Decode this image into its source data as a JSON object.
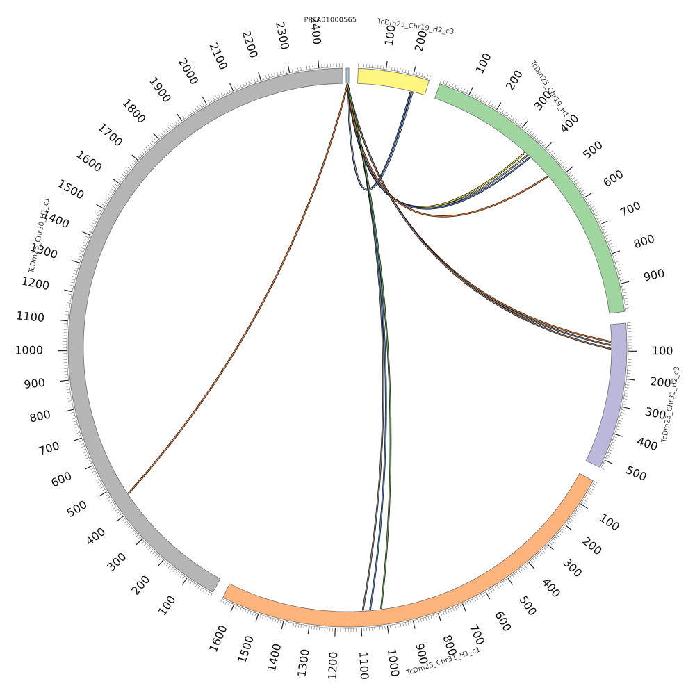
{
  "diagram": {
    "type": "circos",
    "chromosomes": [
      {
        "id": "prfa",
        "label": "PRFA01000565",
        "start": 0,
        "end": 10,
        "color": "#a9c6de",
        "tick_labels": []
      },
      {
        "id": "c19h2",
        "label": "TcDm25_Chr19_H2_c3",
        "start": 0,
        "end": 260,
        "color": "#fff57f",
        "tick_labels": [
          100,
          200
        ]
      },
      {
        "id": "c19h1",
        "label": "TcDm25_Chr19_H1",
        "start": 0,
        "end": 990,
        "color": "#9fd6a0",
        "tick_labels": [
          100,
          200,
          300,
          400,
          500,
          600,
          700,
          800,
          900
        ]
      },
      {
        "id": "c31h2",
        "label": "TcDm25_Chr31_H2_c3",
        "start": 0,
        "end": 530,
        "color": "#bcb8db",
        "tick_labels": [
          100,
          200,
          300,
          400,
          500
        ]
      },
      {
        "id": "c31h1",
        "label": "TcDm25_Chr31_H1_c1",
        "start": 0,
        "end": 1650,
        "color": "#fdb37c",
        "tick_labels": [
          100,
          200,
          300,
          400,
          500,
          600,
          700,
          800,
          900,
          1000,
          1100,
          1200,
          1300,
          1400,
          1500,
          1600
        ]
      },
      {
        "id": "c30h1",
        "label": "TcDm25_Chr30_H1_c1",
        "start": 0,
        "end": 2480,
        "color": "#b5b5b5",
        "tick_labels": [
          100,
          200,
          300,
          400,
          500,
          600,
          700,
          800,
          900,
          1000,
          1100,
          1200,
          1300,
          1400,
          1500,
          1600,
          1700,
          1800,
          1900,
          2000,
          2100,
          2200,
          2300,
          2400
        ]
      }
    ],
    "links": [
      {
        "from": "prfa",
        "from_pos": 5,
        "to": "c19h2",
        "to_pos": 205,
        "color": "#5b7fc4"
      },
      {
        "from": "prfa",
        "from_pos": 5,
        "to": "c19h2",
        "to_pos": 212,
        "color": "#9fb8de"
      },
      {
        "from": "prfa",
        "from_pos": 5,
        "to": "c19h1",
        "to_pos": 360,
        "color": "#f2e24a"
      },
      {
        "from": "prfa",
        "from_pos": 5,
        "to": "c19h1",
        "to_pos": 372,
        "color": "#b5b5b5"
      },
      {
        "from": "prfa",
        "from_pos": 5,
        "to": "c19h1",
        "to_pos": 383,
        "color": "#5b7fc4"
      },
      {
        "from": "prfa",
        "from_pos": 5,
        "to": "c19h1",
        "to_pos": 472,
        "color": "#e07a3a"
      },
      {
        "from": "prfa",
        "from_pos": 5,
        "to": "c31h2",
        "to_pos": 65,
        "color": "#e07a3a"
      },
      {
        "from": "prfa",
        "from_pos": 5,
        "to": "c31h2",
        "to_pos": 78,
        "color": "#8a8a8a"
      },
      {
        "from": "prfa",
        "from_pos": 5,
        "to": "c31h2",
        "to_pos": 92,
        "color": "#9b7a6a"
      },
      {
        "from": "prfa",
        "from_pos": 5,
        "to": "c31h1",
        "to_pos": 1090,
        "color": "#8a8a8a"
      },
      {
        "from": "prfa",
        "from_pos": 5,
        "to": "c31h1",
        "to_pos": 1060,
        "color": "#5b8fcc"
      },
      {
        "from": "prfa",
        "from_pos": 5,
        "to": "c31h1",
        "to_pos": 1015,
        "color": "#6fa860"
      },
      {
        "from": "prfa",
        "from_pos": 5,
        "to": "c30h1",
        "to_pos": 455,
        "color": "#e07a3a"
      }
    ]
  }
}
